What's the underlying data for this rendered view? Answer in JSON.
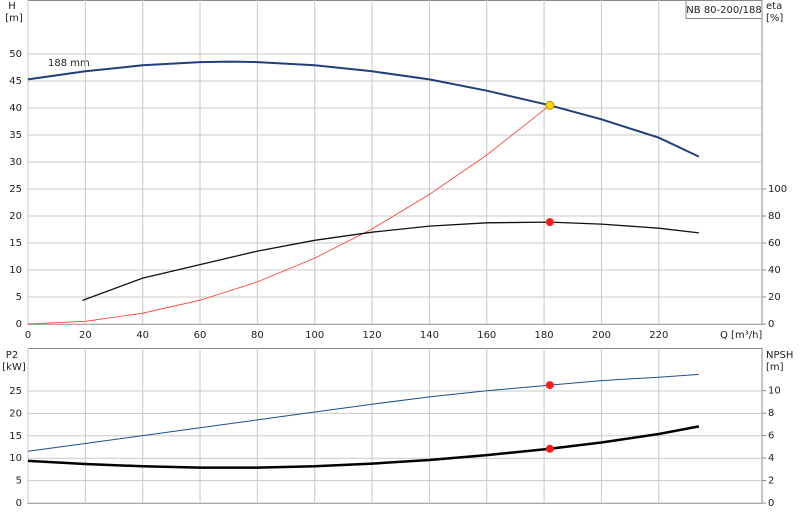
{
  "chart_data": [
    {
      "type": "line",
      "title": "NB 80-200/188",
      "annotation": "188 mm",
      "ylabel": "H",
      "yunit": "[m]",
      "y2label": "eta",
      "y2unit": "[%]",
      "xlabel": "Q [m³/h]",
      "xlim": [
        0,
        256
      ],
      "ylim": [
        0,
        60
      ],
      "y2lim": [
        0,
        240
      ],
      "xticks": [
        0,
        20,
        40,
        60,
        80,
        100,
        120,
        140,
        160,
        180,
        200,
        220
      ],
      "yticks": [
        0,
        5,
        10,
        15,
        20,
        25,
        30,
        35,
        40,
        45,
        50
      ],
      "y2ticks": [
        0,
        20,
        40,
        60,
        80,
        100
      ],
      "grid": true,
      "series": [
        {
          "color": "#1f3f7a",
          "width": 2,
          "x": [
            0,
            20,
            40,
            60,
            70,
            80,
            100,
            120,
            140,
            160,
            182,
            200,
            220,
            234
          ],
          "values": [
            45.3,
            46.8,
            47.9,
            48.5,
            48.6,
            48.5,
            47.9,
            46.8,
            45.3,
            43.2,
            40.5,
            37.9,
            34.5,
            31.0
          ]
        },
        {
          "color": "#ff3b30",
          "width": 0.8,
          "x": [
            0,
            20,
            40,
            60,
            80,
            100,
            120,
            140,
            160,
            182
          ],
          "values": [
            0,
            0.5,
            2.0,
            4.4,
            7.8,
            12.2,
            17.6,
            24.0,
            31.3,
            40.5
          ]
        },
        {
          "color": "#111111",
          "width": 1.3,
          "axis": "y2",
          "x": [
            19,
            40,
            60,
            80,
            100,
            120,
            140,
            160,
            182,
            200,
            220,
            234
          ],
          "values": [
            17.5,
            34,
            44,
            54,
            62,
            68,
            72.5,
            75,
            75.5,
            74,
            71,
            67.5
          ]
        },
        {
          "style": "dot",
          "color": "#ffd700",
          "x": [
            182
          ],
          "values": [
            40.5
          ]
        },
        {
          "style": "dot",
          "color": "#ff1a1a",
          "axis": "y2",
          "x": [
            182
          ],
          "values": [
            75.5
          ]
        }
      ]
    },
    {
      "type": "line",
      "ylabel": "P2",
      "yunit": "[kW]",
      "y2label": "NPSH",
      "y2unit": "[m]",
      "xlim": [
        0,
        256
      ],
      "ylim": [
        0,
        34.6
      ],
      "y2lim": [
        0,
        13.8
      ],
      "xticks": [
        0,
        20,
        40,
        60,
        80,
        100,
        120,
        140,
        160,
        180,
        200,
        220
      ],
      "yticks": [
        0,
        5,
        10,
        15,
        20,
        25
      ],
      "y2ticks": [
        0,
        2,
        4,
        6,
        8,
        10
      ],
      "grid": true,
      "series": [
        {
          "color": "#000000",
          "width": 2.5,
          "x": [
            0,
            20,
            40,
            60,
            80,
            100,
            120,
            140,
            160,
            182,
            200,
            220,
            234
          ],
          "values": [
            9.4,
            8.7,
            8.2,
            7.9,
            7.9,
            8.2,
            8.8,
            9.6,
            10.7,
            12.1,
            13.5,
            15.4,
            17.1
          ]
        },
        {
          "color": "#1f4f8a",
          "width": 1,
          "axis": "y2",
          "x": [
            0,
            20,
            40,
            60,
            80,
            100,
            120,
            140,
            160,
            182,
            200,
            220,
            234
          ],
          "values": [
            4.6,
            5.3,
            6.0,
            6.7,
            7.4,
            8.1,
            8.8,
            9.45,
            10.0,
            10.5,
            10.9,
            11.2,
            11.45
          ]
        },
        {
          "style": "dot",
          "color": "#ff1a1a",
          "x": [
            182
          ],
          "values": [
            12.1
          ]
        },
        {
          "style": "dot",
          "color": "#ff1a1a",
          "axis": "y2",
          "x": [
            182
          ],
          "values": [
            10.5
          ]
        }
      ]
    }
  ]
}
